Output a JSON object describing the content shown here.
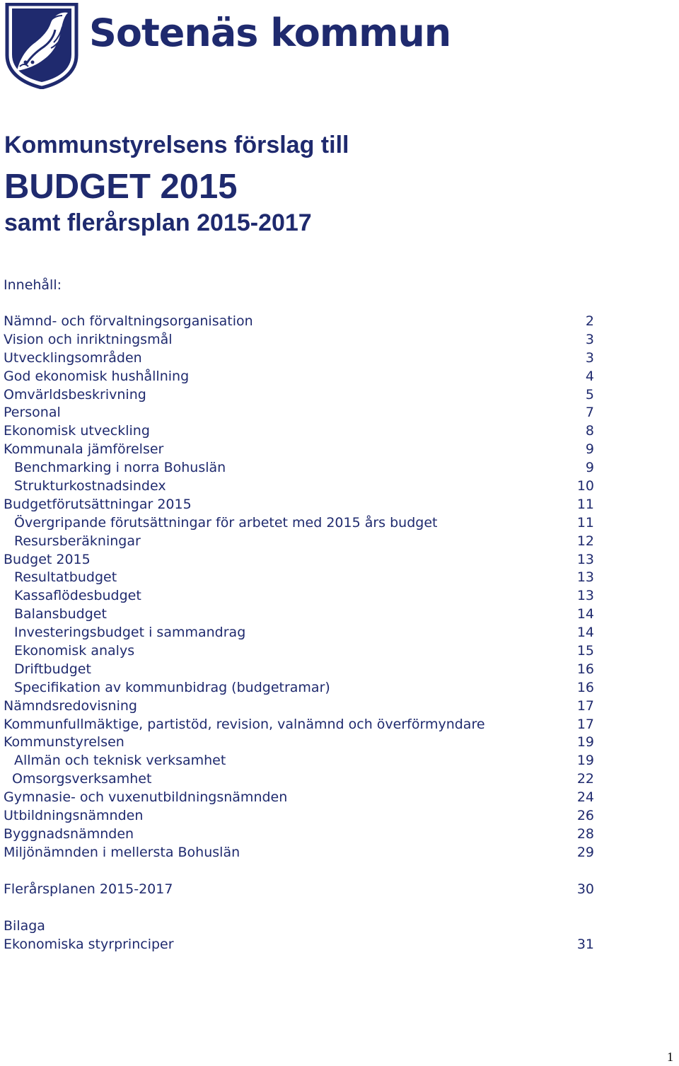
{
  "header": {
    "brand": "Sotenäs kommun",
    "logo_icon": "municipal-shield-logo"
  },
  "title": {
    "line1": "Kommunstyrelsens förslag till",
    "line2": "BUDGET 2015",
    "line3": "samt flerårsplan 2015-2017"
  },
  "toc": {
    "heading": "Innehåll:",
    "entries": [
      {
        "label": "Nämnd- och förvaltningsorganisation",
        "page": "2"
      },
      {
        "label": "Vision och inriktningsmål",
        "page": "3"
      },
      {
        "label": "Utvecklingsområden",
        "page": "3"
      },
      {
        "label": "God ekonomisk hushållning",
        "page": "4"
      },
      {
        "label": "Omvärldsbeskrivning",
        "page": "5"
      },
      {
        "label": "Personal",
        "page": "7"
      },
      {
        "label": "Ekonomisk utveckling",
        "page": "8"
      },
      {
        "label": "Kommunala jämförelser",
        "page": "9"
      },
      {
        "label": "Benchmarking i norra Bohuslän",
        "page": "9"
      },
      {
        "label": "Strukturkostnadsindex",
        "page": "10"
      },
      {
        "label": "Budgetförutsättningar 2015",
        "page": "11"
      },
      {
        "label": "Övergripande förutsättningar för arbetet med 2015 års budget",
        "page": "11"
      },
      {
        "label": "Resursberäkningar",
        "page": "12"
      },
      {
        "label": "Budget 2015",
        "page": "13"
      },
      {
        "label": "Resultatbudget",
        "page": "13"
      },
      {
        "label": "Kassaflödesbudget",
        "page": "13"
      },
      {
        "label": "Balansbudget",
        "page": "14"
      },
      {
        "label": "Investeringsbudget i sammandrag",
        "page": "14"
      },
      {
        "label": "Ekonomisk analys",
        "page": "15"
      },
      {
        "label": "Driftbudget",
        "page": "16"
      },
      {
        "label": "Specifikation av kommunbidrag (budgetramar)",
        "page": "16"
      },
      {
        "label": "Nämndsredovisning",
        "page": "17"
      },
      {
        "label": "Kommunfullmäktige, partistöd, revision, valnämnd och överförmyndare",
        "page": "17"
      },
      {
        "label": "Kommunstyrelsen",
        "page": "19"
      },
      {
        "label": "Allmän och teknisk verksamhet",
        "page": "19"
      },
      {
        "label": "Omsorgsverksamhet",
        "page": "22"
      },
      {
        "label": "Gymnasie- och vuxenutbildningsnämnden",
        "page": "24"
      },
      {
        "label": "Utbildningsnämnden",
        "page": "26"
      },
      {
        "label": "Byggnadsnämnden",
        "page": "28"
      },
      {
        "label": "Miljönämnden i mellersta Bohuslän",
        "page": "29"
      },
      {
        "label": "Flerårsplanen 2015-2017",
        "page": "30"
      },
      {
        "label": "Bilaga",
        "page": ""
      },
      {
        "label": "Ekonomiska styrprinciper",
        "page": "31"
      }
    ]
  },
  "footer": {
    "page_number": "1"
  }
}
